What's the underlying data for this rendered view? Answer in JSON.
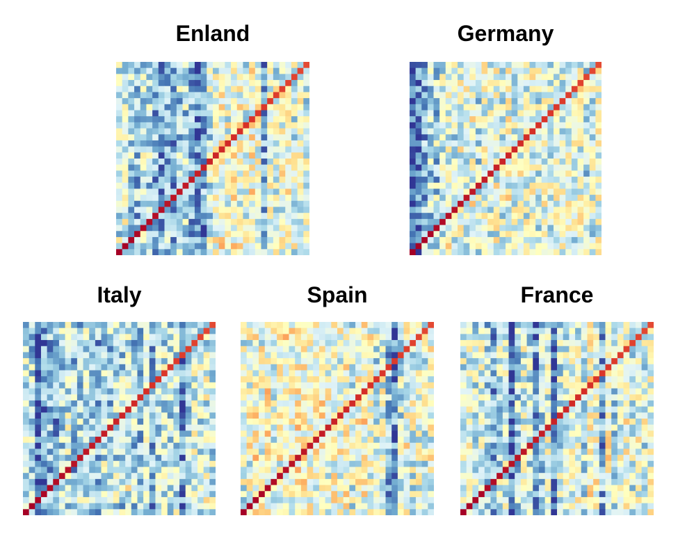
{
  "chart_data": [
    {
      "type": "heatmap",
      "title": "Enland",
      "n": 32,
      "diagonal_direction": "bottom-left-to-top-right",
      "colormap": "RdYlBu_r",
      "seed": 11,
      "column_bias": [
        -0.2,
        -0.1,
        -0.3,
        -0.4,
        -0.2,
        -0.3,
        -0.5,
        -0.6,
        -0.4,
        -0.5,
        -0.3,
        -0.3,
        -0.5,
        -0.7,
        -0.6,
        -0.2,
        0.0,
        0.1,
        0.0,
        0.1,
        0.0,
        -0.1,
        0.1,
        0.0,
        -0.5,
        0.0,
        -0.1,
        0.0,
        0.1,
        -0.1,
        0.0,
        -0.1
      ]
    },
    {
      "type": "heatmap",
      "title": "Germany",
      "n": 32,
      "diagonal_direction": "bottom-left-to-top-right",
      "colormap": "RdYlBu_r",
      "seed": 23,
      "column_bias": [
        -0.9,
        -0.7,
        -0.5,
        -0.3,
        -0.3,
        -0.1,
        0.0,
        -0.1,
        0.0,
        -0.1,
        0.0,
        -0.2,
        0.0,
        -0.1,
        0.0,
        -0.1,
        0.0,
        -0.1,
        0.0,
        -0.1,
        0.0,
        -0.1,
        0.0,
        -0.1,
        0.0,
        -0.1,
        0.0,
        -0.1,
        0.0,
        -0.2,
        -0.1,
        0.0
      ]
    },
    {
      "type": "heatmap",
      "title": "Italy",
      "n": 32,
      "diagonal_direction": "bottom-left-to-top-right",
      "colormap": "RdYlBu_r",
      "seed": 37,
      "column_bias": [
        -0.2,
        -0.3,
        -0.8,
        -0.6,
        -0.4,
        -0.5,
        -0.3,
        -0.2,
        -0.4,
        -0.3,
        -0.2,
        -0.3,
        -0.4,
        -0.2,
        -0.3,
        -0.2,
        -0.3,
        -0.1,
        -0.3,
        -0.4,
        -0.2,
        -0.5,
        -0.3,
        -0.2,
        -0.3,
        -0.2,
        -0.6,
        -0.3,
        -0.1,
        -0.2,
        -0.1,
        -0.2
      ]
    },
    {
      "type": "heatmap",
      "title": "Spain",
      "n": 32,
      "diagonal_direction": "bottom-left-to-top-right",
      "colormap": "RdYlBu_r",
      "seed": 41,
      "column_bias": [
        -0.1,
        0.0,
        0.1,
        0.0,
        0.1,
        -0.1,
        0.0,
        0.1,
        0.0,
        0.1,
        0.1,
        0.0,
        0.1,
        0.2,
        0.0,
        0.1,
        0.0,
        0.1,
        -0.1,
        0.0,
        0.1,
        0.0,
        -0.2,
        -0.1,
        -0.5,
        -0.7,
        -0.2,
        0.0,
        -0.1,
        0.0,
        -0.1,
        0.0
      ]
    },
    {
      "type": "heatmap",
      "title": "France",
      "n": 32,
      "diagonal_direction": "bottom-left-to-top-right",
      "colormap": "RdYlBu_r",
      "seed": 53,
      "column_bias": [
        -0.1,
        0.0,
        -0.2,
        -0.1,
        -0.3,
        -0.5,
        -0.2,
        -0.1,
        -0.8,
        -0.3,
        -0.1,
        -0.2,
        -0.6,
        -0.3,
        -0.1,
        -0.7,
        -0.2,
        -0.1,
        0.0,
        -0.1,
        -0.2,
        0.1,
        0.0,
        -0.5,
        0.1,
        -0.2,
        0.0,
        0.1,
        -0.1,
        0.0,
        -0.1,
        0.0
      ]
    }
  ]
}
